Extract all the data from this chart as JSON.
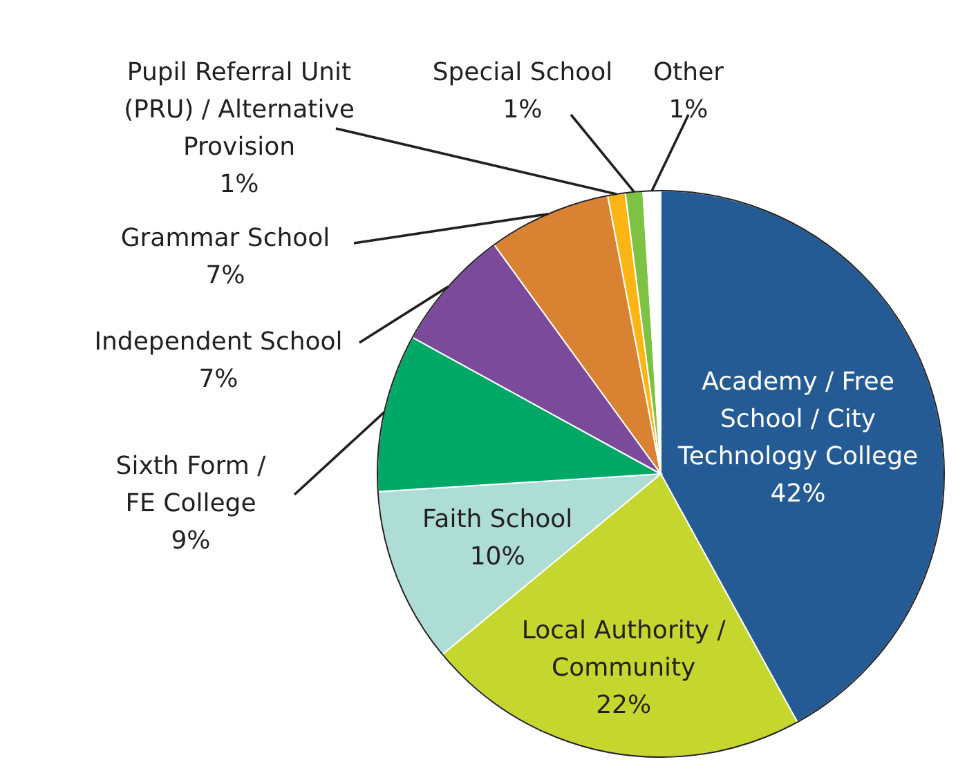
{
  "chart_data": {
    "type": "pie",
    "categories": [
      "Academy / Free School / City Technology College",
      "Local Authority / Community",
      "Faith School",
      "Sixth Form / FE College",
      "Independent School",
      "Grammar School",
      "Pupil Referral Unit (PRU) / Alternative Provision",
      "Special School",
      "Other"
    ],
    "values": [
      42,
      22,
      10,
      9,
      7,
      7,
      1,
      1,
      1
    ],
    "value_labels": [
      "42%",
      "22%",
      "10%",
      "9%",
      "7%",
      "7%",
      "1%",
      "1%",
      "1%"
    ],
    "colors": [
      "#255b95",
      "#c5d62e",
      "#aeddd6",
      "#00a867",
      "#7b4a9a",
      "#d98332",
      "#fdb515",
      "#7dc243",
      "#ffffff"
    ],
    "legend": false
  }
}
